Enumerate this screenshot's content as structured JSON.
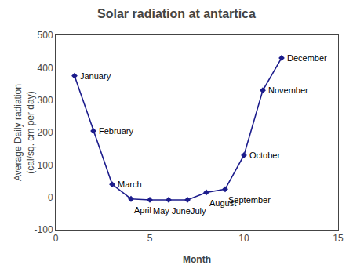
{
  "chart_data": {
    "type": "line",
    "title": "Solar radiation at antartica",
    "xlabel": "Month",
    "ylabel": "Average Daily radiation\n(cal/sq. cm per day)",
    "x": [
      1,
      2,
      3,
      4,
      5,
      6,
      7,
      8,
      9,
      10,
      11,
      12
    ],
    "values": [
      375,
      205,
      40,
      -5,
      -8,
      -8,
      -8,
      15,
      25,
      130,
      330,
      430
    ],
    "xlim": [
      0,
      15
    ],
    "ylim": [
      -100,
      500
    ],
    "xticks": [
      0,
      5,
      10,
      15
    ],
    "yticks": [
      -100,
      0,
      100,
      200,
      300,
      400,
      500
    ],
    "color": "#1C1C8C",
    "marker": "diamond",
    "line_style": "solid",
    "grid": false,
    "annotations": [
      {
        "text": "January",
        "x": 1,
        "y": 375
      },
      {
        "text": "February",
        "x": 2,
        "y": 205
      },
      {
        "text": "March",
        "x": 3,
        "y": 40
      },
      {
        "text": "April",
        "x": 4,
        "y": -5
      },
      {
        "text": "May",
        "x": 5,
        "y": -8
      },
      {
        "text": "June",
        "x": 6,
        "y": -8
      },
      {
        "text": "July",
        "x": 7,
        "y": -8
      },
      {
        "text": "August",
        "x": 8,
        "y": 15
      },
      {
        "text": "September",
        "x": 9,
        "y": 25
      },
      {
        "text": "October",
        "x": 10,
        "y": 130
      },
      {
        "text": "November",
        "x": 11,
        "y": 330
      },
      {
        "text": "December",
        "x": 12,
        "y": 430
      }
    ]
  }
}
